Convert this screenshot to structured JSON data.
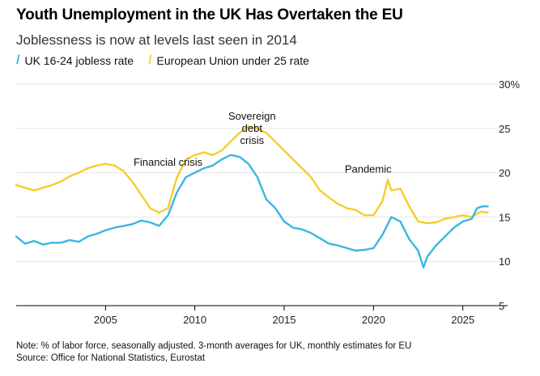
{
  "title": "Youth Unemployment in the UK Has Overtaken the EU",
  "subtitle": "Joblessness is now at levels last seen in 2014",
  "legend": {
    "uk_label": "UK 16-24 jobless rate",
    "eu_label": "European Union under 25 rate"
  },
  "colors": {
    "uk": "#3bb6e3",
    "eu": "#f2cf2d",
    "grid": "#e6e6e6",
    "axis": "#000000"
  },
  "notes": {
    "note": "Note: % of labor force, seasonally adjusted. 3-month averages for UK, monthly estimates for EU",
    "source": "Source: Office for National Statistics, Eurostat"
  },
  "chart_data": {
    "type": "line",
    "x_ticks": [
      "2005",
      "2010",
      "2015",
      "2020",
      "2025"
    ],
    "y_ticks": [
      "5",
      "10",
      "15",
      "20",
      "25",
      "30%"
    ],
    "ylim": [
      5,
      30
    ],
    "xlim": [
      2000.0,
      2026.6
    ],
    "grid": true,
    "y_axis_position": "right",
    "annotations": [
      {
        "text": "Financial crisis",
        "x": 2008.5,
        "y": 20.8
      },
      {
        "text": "Sovereign debt crisis",
        "x": 2013.2,
        "y": 26.0
      },
      {
        "text": "Pandemic",
        "x": 2019.7,
        "y": 20.0
      }
    ],
    "series": [
      {
        "name": "UK 16-24 jobless rate",
        "x": [
          2000.0,
          2000.5,
          2001.0,
          2001.5,
          2002.0,
          2002.5,
          2003.0,
          2003.5,
          2004.0,
          2004.5,
          2005.0,
          2005.5,
          2006.0,
          2006.5,
          2007.0,
          2007.5,
          2008.0,
          2008.5,
          2009.0,
          2009.5,
          2010.0,
          2010.5,
          2011.0,
          2011.5,
          2012.0,
          2012.5,
          2013.0,
          2013.5,
          2014.0,
          2014.5,
          2015.0,
          2015.5,
          2016.0,
          2016.5,
          2017.0,
          2017.5,
          2018.0,
          2018.5,
          2019.0,
          2019.5,
          2020.0,
          2020.5,
          2021.0,
          2021.5,
          2022.0,
          2022.5,
          2022.8,
          2023.0,
          2023.5,
          2024.0,
          2024.5,
          2025.0,
          2025.5,
          2025.8,
          2026.1,
          2026.4
        ],
        "values": [
          12.8,
          12.0,
          12.3,
          11.9,
          12.1,
          12.1,
          12.4,
          12.2,
          12.8,
          13.1,
          13.5,
          13.8,
          14.0,
          14.2,
          14.6,
          14.4,
          14.0,
          15.2,
          17.8,
          19.5,
          20.0,
          20.5,
          20.8,
          21.5,
          22.0,
          21.8,
          21.0,
          19.5,
          17.0,
          16.0,
          14.5,
          13.8,
          13.6,
          13.2,
          12.6,
          12.0,
          11.8,
          11.5,
          11.2,
          11.3,
          11.5,
          13.0,
          15.0,
          14.5,
          12.5,
          11.2,
          9.3,
          10.5,
          11.8,
          12.8,
          13.8,
          14.5,
          14.8,
          16.0,
          16.2,
          16.2
        ]
      },
      {
        "name": "European Union under 25 rate",
        "x": [
          2000.0,
          2000.5,
          2001.0,
          2001.5,
          2002.0,
          2002.5,
          2003.0,
          2003.5,
          2004.0,
          2004.5,
          2005.0,
          2005.5,
          2006.0,
          2006.5,
          2007.0,
          2007.5,
          2008.0,
          2008.5,
          2009.0,
          2009.5,
          2010.0,
          2010.5,
          2011.0,
          2011.5,
          2012.0,
          2012.5,
          2013.0,
          2013.5,
          2014.0,
          2014.5,
          2015.0,
          2015.5,
          2016.0,
          2016.5,
          2017.0,
          2017.5,
          2018.0,
          2018.5,
          2019.0,
          2019.5,
          2020.0,
          2020.5,
          2020.8,
          2021.0,
          2021.5,
          2022.0,
          2022.5,
          2023.0,
          2023.5,
          2024.0,
          2024.5,
          2025.0,
          2025.5,
          2026.0,
          2026.4
        ],
        "values": [
          18.6,
          18.3,
          18.0,
          18.3,
          18.6,
          19.0,
          19.6,
          20.0,
          20.5,
          20.8,
          21.0,
          20.8,
          20.2,
          19.0,
          17.5,
          16.0,
          15.5,
          16.0,
          19.5,
          21.5,
          22.0,
          22.3,
          22.0,
          22.5,
          23.5,
          24.5,
          25.2,
          25.0,
          24.5,
          23.5,
          22.5,
          21.5,
          20.5,
          19.5,
          18.0,
          17.2,
          16.5,
          16.0,
          15.8,
          15.2,
          15.2,
          16.8,
          19.2,
          18.0,
          18.2,
          16.2,
          14.5,
          14.3,
          14.4,
          14.8,
          15.0,
          15.2,
          15.0,
          15.6,
          15.5
        ]
      }
    ]
  }
}
